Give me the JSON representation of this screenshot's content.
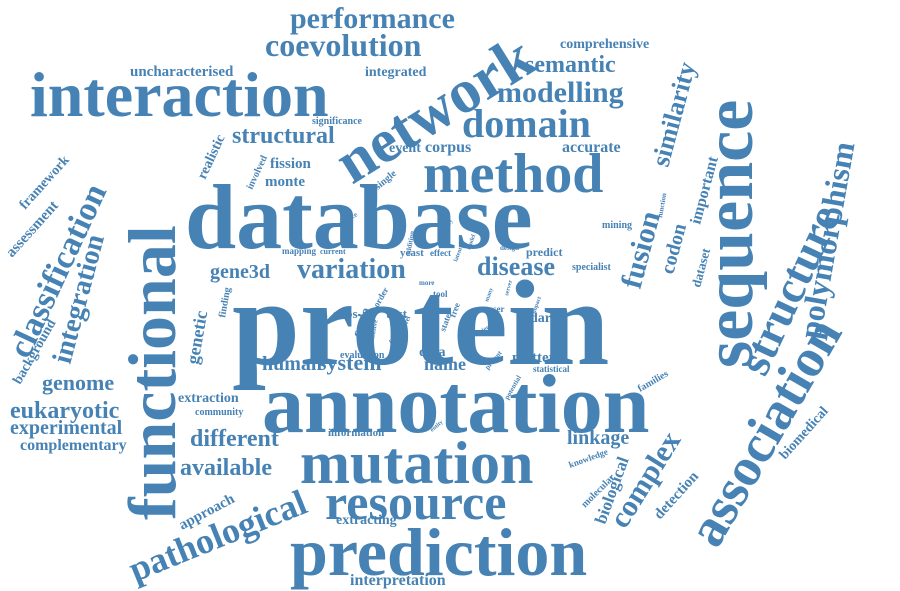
{
  "colors": {
    "word": "#4682b4",
    "background": "#ffffff"
  },
  "words": [
    "protein",
    "database",
    "annotation",
    "functional",
    "sequence",
    "prediction",
    "network",
    "interaction",
    "mutation",
    "resource",
    "association",
    "method",
    "structure",
    "polymorphism",
    "domain",
    "classification",
    "pathological",
    "integration",
    "coevolution",
    "performance",
    "modelling",
    "semantic",
    "similarity",
    "fusion",
    "variation",
    "disease",
    "complex",
    "structural",
    "genome",
    "eukaryotic",
    "experimental",
    "complementary",
    "available",
    "different",
    "linkage",
    "human",
    "system",
    "name",
    "comprehensive",
    "uncharacterised",
    "integrated",
    "framework",
    "assessment",
    "background",
    "genetic",
    "gene3d",
    "codon",
    "important",
    "dataset",
    "biomedical",
    "detection",
    "biological",
    "molecular",
    "approach",
    "extracting",
    "interpretation",
    "extraction",
    "community",
    "information",
    "evaluation",
    "matter",
    "statistical",
    "families",
    "dark",
    "cath",
    "text",
    "snps",
    "data",
    "accurate",
    "corpus",
    "event",
    "fission",
    "monte",
    "carlo",
    "realistic",
    "involved",
    "single",
    "significance",
    "mining",
    "yeast",
    "effect",
    "mapping",
    "current",
    "predict",
    "specialist",
    "finding",
    "tool",
    "order",
    "elusive",
    "novel",
    "state",
    "free",
    "user",
    "design",
    "knowledge",
    "present",
    "potential",
    "entity",
    "function",
    "service",
    "display",
    "addition",
    "latent",
    "model",
    "level",
    "more",
    "point",
    "many",
    "server",
    "impact",
    "region"
  ]
}
